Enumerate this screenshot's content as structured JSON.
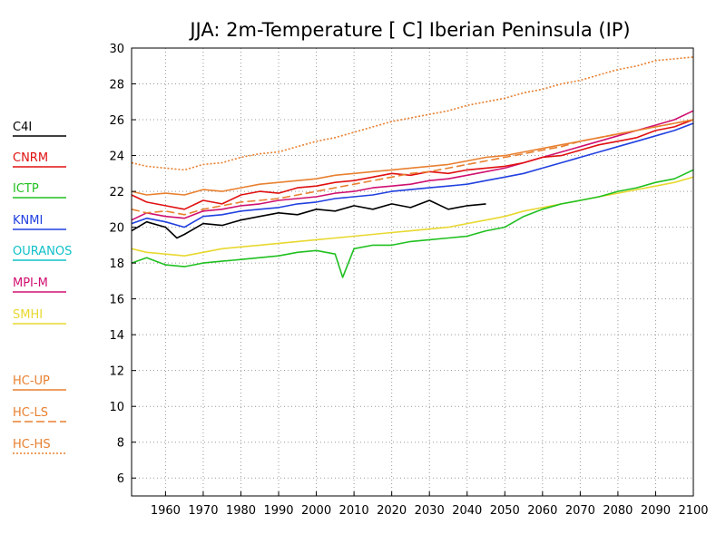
{
  "chart_data": {
    "type": "line",
    "title": "JJA: 2m-Temperature [   C] Iberian Peninsula (IP)",
    "xlabel": "",
    "ylabel": "",
    "xlim": [
      1951,
      2100
    ],
    "ylim": [
      5,
      30
    ],
    "x_ticks": [
      1960,
      1970,
      1980,
      1990,
      2000,
      2010,
      2020,
      2030,
      2040,
      2050,
      2060,
      2070,
      2080,
      2090,
      2100
    ],
    "y_ticks": [
      6,
      8,
      10,
      12,
      14,
      16,
      18,
      20,
      22,
      24,
      26,
      28,
      30
    ],
    "grid": true,
    "legend_position": "left",
    "series": [
      {
        "name": "C4I",
        "color": "#000000",
        "dash": "solid",
        "x": [
          1951,
          1955,
          1960,
          1963,
          1965,
          1970,
          1975,
          1980,
          1985,
          1990,
          1995,
          2000,
          2005,
          2010,
          2015,
          2020,
          2025,
          2030,
          2035,
          2040,
          2045
        ],
        "y": [
          19.8,
          20.3,
          20.0,
          19.4,
          19.6,
          20.2,
          20.1,
          20.4,
          20.6,
          20.8,
          20.7,
          21.0,
          20.9,
          21.2,
          21.0,
          21.3,
          21.1,
          21.5,
          21.0,
          21.2,
          21.3
        ]
      },
      {
        "name": "CNRM",
        "color": "#e01010",
        "dash": "solid",
        "x": [
          1951,
          1955,
          1960,
          1965,
          1970,
          1975,
          1980,
          1985,
          1990,
          1995,
          2000,
          2005,
          2010,
          2015,
          2020,
          2025,
          2030,
          2035,
          2040,
          2045,
          2050,
          2055,
          2060,
          2065,
          2070,
          2075,
          2080,
          2085,
          2090,
          2095,
          2100
        ],
        "y": [
          21.8,
          21.4,
          21.2,
          21.0,
          21.5,
          21.3,
          21.8,
          22.0,
          21.9,
          22.2,
          22.3,
          22.5,
          22.6,
          22.8,
          23.0,
          22.9,
          23.1,
          23.0,
          23.2,
          23.3,
          23.4,
          23.6,
          23.9,
          24.0,
          24.3,
          24.6,
          24.8,
          25.0,
          25.4,
          25.6,
          26.0
        ]
      },
      {
        "name": "ICTP",
        "color": "#20c020",
        "dash": "solid",
        "x": [
          1951,
          1955,
          1960,
          1965,
          1970,
          1975,
          1980,
          1985,
          1990,
          1995,
          2000,
          2005,
          2007,
          2010,
          2015,
          2020,
          2025,
          2030,
          2035,
          2040,
          2045,
          2050,
          2055,
          2060,
          2065,
          2070,
          2075,
          2080,
          2085,
          2090,
          2095,
          2100
        ],
        "y": [
          18.0,
          18.3,
          17.9,
          17.8,
          18.0,
          18.1,
          18.2,
          18.3,
          18.4,
          18.6,
          18.7,
          18.5,
          17.2,
          18.8,
          19.0,
          19.0,
          19.2,
          19.3,
          19.4,
          19.5,
          19.8,
          20.0,
          20.6,
          21.0,
          21.3,
          21.5,
          21.7,
          22.0,
          22.2,
          22.5,
          22.7,
          23.2
        ]
      },
      {
        "name": "KNMI",
        "color": "#2040e0",
        "dash": "solid",
        "x": [
          1951,
          1955,
          1960,
          1965,
          1970,
          1975,
          1980,
          1985,
          1990,
          1995,
          2000,
          2005,
          2010,
          2015,
          2020,
          2025,
          2030,
          2035,
          2040,
          2045,
          2050,
          2055,
          2060,
          2065,
          2070,
          2075,
          2080,
          2085,
          2090,
          2095,
          2100
        ],
        "y": [
          20.2,
          20.5,
          20.3,
          20.0,
          20.6,
          20.7,
          20.9,
          21.0,
          21.1,
          21.3,
          21.4,
          21.6,
          21.7,
          21.8,
          22.0,
          22.1,
          22.2,
          22.3,
          22.4,
          22.6,
          22.8,
          23.0,
          23.3,
          23.6,
          23.9,
          24.2,
          24.5,
          24.8,
          25.1,
          25.4,
          25.8
        ]
      },
      {
        "name": "OURANOS",
        "color": "#10c0c8",
        "dash": "solid",
        "x": [],
        "y": []
      },
      {
        "name": "MPI-M",
        "color": "#d01070",
        "dash": "solid",
        "x": [
          1951,
          1955,
          1960,
          1965,
          1970,
          1975,
          1980,
          1985,
          1990,
          1995,
          2000,
          2005,
          2010,
          2015,
          2020,
          2025,
          2030,
          2035,
          2040,
          2045,
          2050,
          2055,
          2060,
          2065,
          2070,
          2075,
          2080,
          2085,
          2090,
          2095,
          2100
        ],
        "y": [
          20.4,
          20.8,
          20.6,
          20.5,
          20.9,
          21.0,
          21.2,
          21.3,
          21.5,
          21.6,
          21.7,
          21.9,
          22.0,
          22.2,
          22.3,
          22.4,
          22.6,
          22.7,
          22.9,
          23.1,
          23.3,
          23.6,
          23.9,
          24.2,
          24.5,
          24.8,
          25.1,
          25.4,
          25.7,
          26.0,
          26.5
        ]
      },
      {
        "name": "SMHI",
        "color": "#e8d830",
        "dash": "solid",
        "x": [
          1951,
          1955,
          1960,
          1965,
          1970,
          1975,
          1980,
          1985,
          1990,
          1995,
          2000,
          2005,
          2010,
          2015,
          2020,
          2025,
          2030,
          2035,
          2040,
          2045,
          2050,
          2055,
          2060,
          2065,
          2070,
          2075,
          2080,
          2085,
          2090,
          2095,
          2100
        ],
        "y": [
          18.8,
          18.6,
          18.5,
          18.4,
          18.6,
          18.8,
          18.9,
          19.0,
          19.1,
          19.2,
          19.3,
          19.4,
          19.5,
          19.6,
          19.7,
          19.8,
          19.9,
          20.0,
          20.2,
          20.4,
          20.6,
          20.9,
          21.1,
          21.3,
          21.5,
          21.7,
          21.9,
          22.1,
          22.3,
          22.5,
          22.8
        ]
      },
      {
        "name": "HC-UP",
        "color": "#e88030",
        "dash": "solid",
        "x": [
          1951,
          1955,
          1960,
          1965,
          1970,
          1975,
          1980,
          1985,
          1990,
          1995,
          2000,
          2005,
          2010,
          2015,
          2020,
          2025,
          2030,
          2035,
          2040,
          2045,
          2050,
          2055,
          2060,
          2065,
          2070,
          2075,
          2080,
          2085,
          2090,
          2095,
          2100
        ],
        "y": [
          22.0,
          21.8,
          21.9,
          21.8,
          22.1,
          22.0,
          22.2,
          22.4,
          22.5,
          22.6,
          22.7,
          22.9,
          23.0,
          23.1,
          23.2,
          23.3,
          23.4,
          23.5,
          23.7,
          23.9,
          24.0,
          24.2,
          24.4,
          24.6,
          24.8,
          25.0,
          25.2,
          25.4,
          25.6,
          25.8,
          26.0
        ]
      },
      {
        "name": "HC-LS",
        "color": "#e88030",
        "dash": "longdash",
        "x": [
          1951,
          1955,
          1960,
          1965,
          1970,
          1975,
          1980,
          1985,
          1990,
          1995,
          2000,
          2005,
          2010,
          2015,
          2020,
          2025,
          2030,
          2035,
          2040,
          2045,
          2050,
          2055,
          2060,
          2065,
          2070,
          2075,
          2080,
          2085,
          2090,
          2095,
          2100
        ],
        "y": [
          21.0,
          20.8,
          20.9,
          20.7,
          21.0,
          21.2,
          21.4,
          21.5,
          21.6,
          21.8,
          22.0,
          22.2,
          22.4,
          22.6,
          22.8,
          23.0,
          23.1,
          23.3,
          23.5,
          23.7,
          23.9,
          24.1,
          24.3,
          24.5,
          24.8,
          25.0,
          25.2,
          25.4,
          25.6,
          25.8,
          26.0
        ]
      },
      {
        "name": "HC-HS",
        "color": "#e88030",
        "dash": "dotted",
        "x": [
          1951,
          1955,
          1960,
          1965,
          1970,
          1975,
          1980,
          1985,
          1990,
          1995,
          2000,
          2005,
          2010,
          2015,
          2020,
          2025,
          2030,
          2035,
          2040,
          2045,
          2050,
          2055,
          2060,
          2065,
          2070,
          2075,
          2080,
          2085,
          2090,
          2095,
          2100
        ],
        "y": [
          23.6,
          23.4,
          23.3,
          23.2,
          23.5,
          23.6,
          23.9,
          24.1,
          24.2,
          24.5,
          24.8,
          25.0,
          25.3,
          25.6,
          25.9,
          26.1,
          26.3,
          26.5,
          26.8,
          27.0,
          27.2,
          27.5,
          27.7,
          28.0,
          28.2,
          28.5,
          28.8,
          29.0,
          29.3,
          29.4,
          29.5
        ]
      }
    ]
  }
}
